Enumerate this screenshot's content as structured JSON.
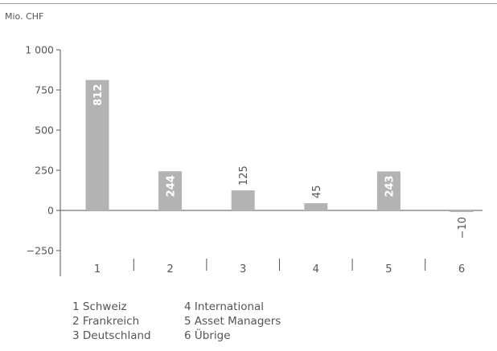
{
  "chart_data": {
    "type": "bar",
    "unit_label": "Mio. CHF",
    "categories": [
      "1",
      "2",
      "3",
      "4",
      "5",
      "6"
    ],
    "values": [
      812,
      244,
      125,
      45,
      243,
      -10
    ],
    "value_labels": [
      "812",
      "244",
      "125",
      "45",
      "243",
      "−10"
    ],
    "ylim": [
      -300,
      1000
    ],
    "yticks": [
      1000,
      750,
      500,
      250,
      0,
      -250
    ],
    "ytick_labels": [
      "1 000",
      "750",
      "500",
      "250",
      "0",
      "−250"
    ],
    "bar_color": "#b3b3b3",
    "legend": [
      "1 Schweiz",
      "4 International",
      "2 Frankreich",
      "5 Asset Managers",
      "3 Deutschland",
      "6 Übrige"
    ]
  }
}
